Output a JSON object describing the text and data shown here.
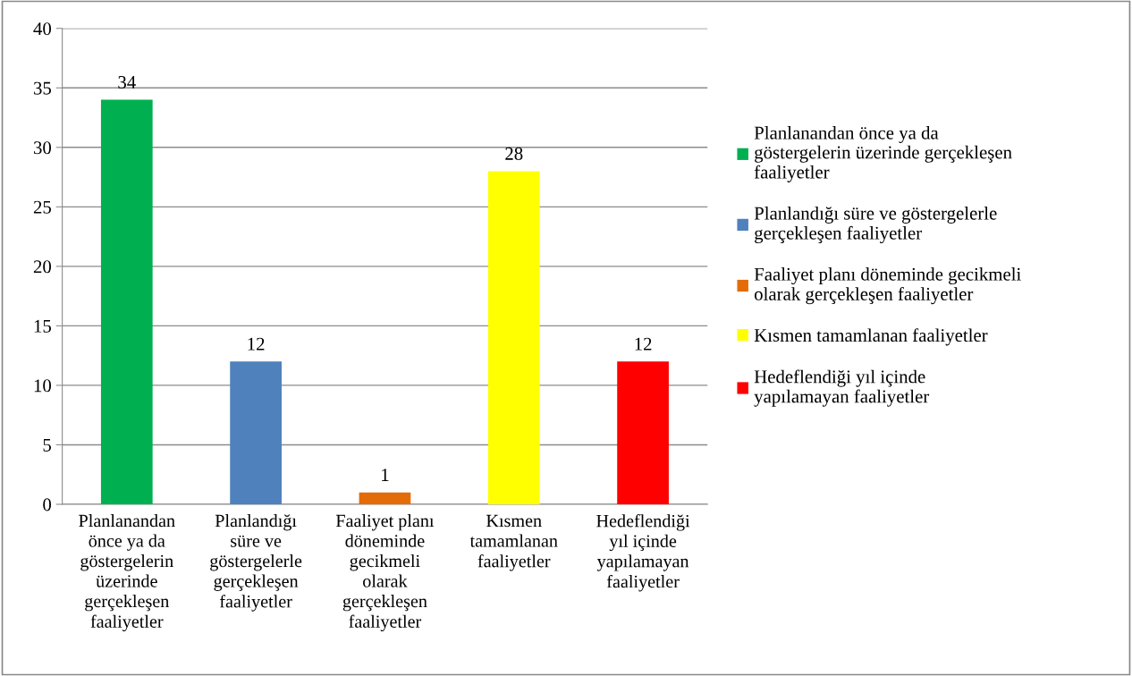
{
  "chart_data": {
    "type": "bar",
    "categories": [
      "Planlanandan önce ya da göstergelerin üzerinde gerçekleşen faaliyetler",
      "Planlandığı süre ve göstergelerle gerçekleşen faaliyetler",
      "Faaliyet planı döneminde gecikmeli olarak gerçekleşen faaliyetler",
      "Kısmen tamamlanan faaliyetler",
      "Hedeflendiği yıl içinde yapılamayan faaliyetler"
    ],
    "series": [
      {
        "name": "Planlanandan önce ya da göstergelerin üzerinde gerçekleşen faaliyetler",
        "color": "#00b050",
        "values": [
          34,
          null,
          null,
          null,
          null
        ]
      },
      {
        "name": "Planlandığı süre ve göstergelerle gerçekleşen faaliyetler",
        "color": "#4f81bd",
        "values": [
          null,
          12,
          null,
          null,
          null
        ]
      },
      {
        "name": "Faaliyet planı döneminde gecikmeli olarak gerçekleşen faaliyetler",
        "color": "#e36c09",
        "values": [
          null,
          null,
          1,
          null,
          null
        ]
      },
      {
        "name": "Kısmen tamamlanan faaliyetler",
        "color": "#ffff00",
        "values": [
          null,
          null,
          null,
          28,
          null
        ]
      },
      {
        "name": "Hedeflendiği yıl içinde yapılamayan faaliyetler",
        "color": "#ff0000",
        "values": [
          null,
          null,
          null,
          null,
          12
        ]
      }
    ],
    "stacked": true,
    "ylim": [
      0,
      40
    ],
    "yticks": [
      0,
      5,
      10,
      15,
      20,
      25,
      30,
      35,
      40
    ],
    "grid": "y",
    "data_labels": true,
    "legend": "right"
  }
}
